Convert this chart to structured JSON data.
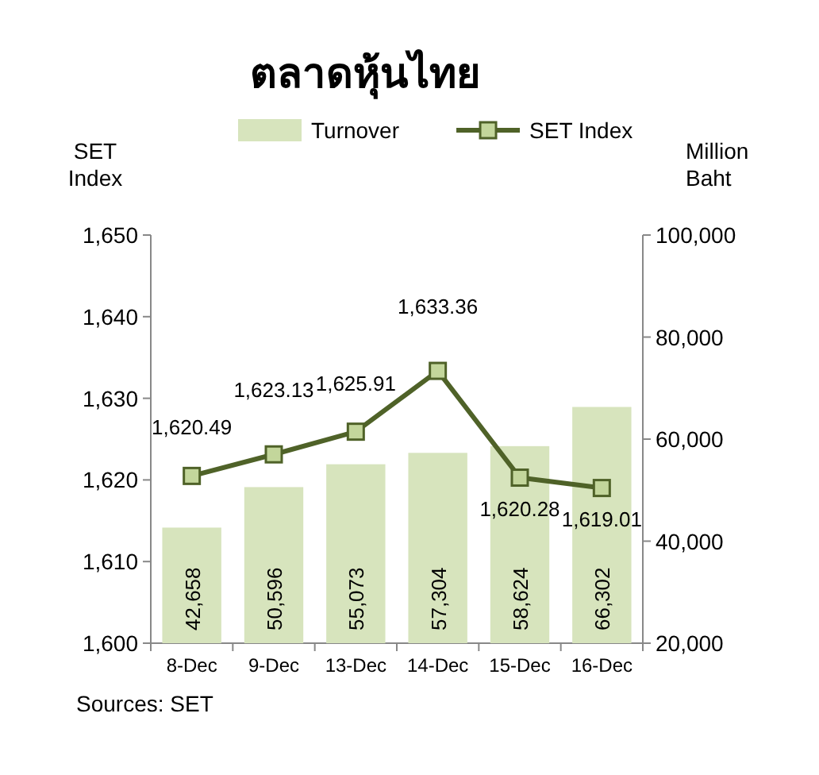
{
  "chart_data": {
    "type": "bar",
    "title": "ตลาดหุ้นไทย",
    "ylabel": "SET Index",
    "y2label": "Million Baht",
    "categories": [
      "8-Dec",
      "9-Dec",
      "13-Dec",
      "14-Dec",
      "15-Dec",
      "16-Dec"
    ],
    "series": [
      {
        "name": "Turnover",
        "axis": "y2",
        "color": "#d7e4bd",
        "values": [
          42658,
          50596,
          55073,
          57304,
          58624,
          66302
        ],
        "value_labels": [
          "42,658",
          "50,596",
          "55,073",
          "57,304",
          "58,624",
          "66,302"
        ]
      },
      {
        "name": "SET Index",
        "type": "line",
        "axis": "y",
        "color": "#4f6228",
        "marker": "square",
        "values": [
          1620.49,
          1623.13,
          1625.91,
          1633.36,
          1620.28,
          1619.01
        ],
        "value_labels": [
          "1,620.49",
          "1,623.13",
          "1,625.91",
          "1,633.36",
          "1,620.28",
          "1,619.01"
        ]
      }
    ],
    "ylim": [
      1600,
      1650
    ],
    "yticks": [
      {
        "value": 1600,
        "label": "1,600"
      },
      {
        "value": 1610,
        "label": "1,610"
      },
      {
        "value": 1620,
        "label": "1,620"
      },
      {
        "value": 1630,
        "label": "1,630"
      },
      {
        "value": 1640,
        "label": "1,640"
      },
      {
        "value": 1650,
        "label": "1,650"
      }
    ],
    "y2lim": [
      20000,
      100000
    ],
    "y2ticks": [
      {
        "value": 20000,
        "label": "20,000"
      },
      {
        "value": 40000,
        "label": "40,000"
      },
      {
        "value": 60000,
        "label": "60,000"
      },
      {
        "value": 80000,
        "label": "80,000"
      },
      {
        "value": 100000,
        "label": "100,000"
      }
    ],
    "legend": "top",
    "grid": false,
    "annotations": [
      "Sources: SET"
    ]
  }
}
